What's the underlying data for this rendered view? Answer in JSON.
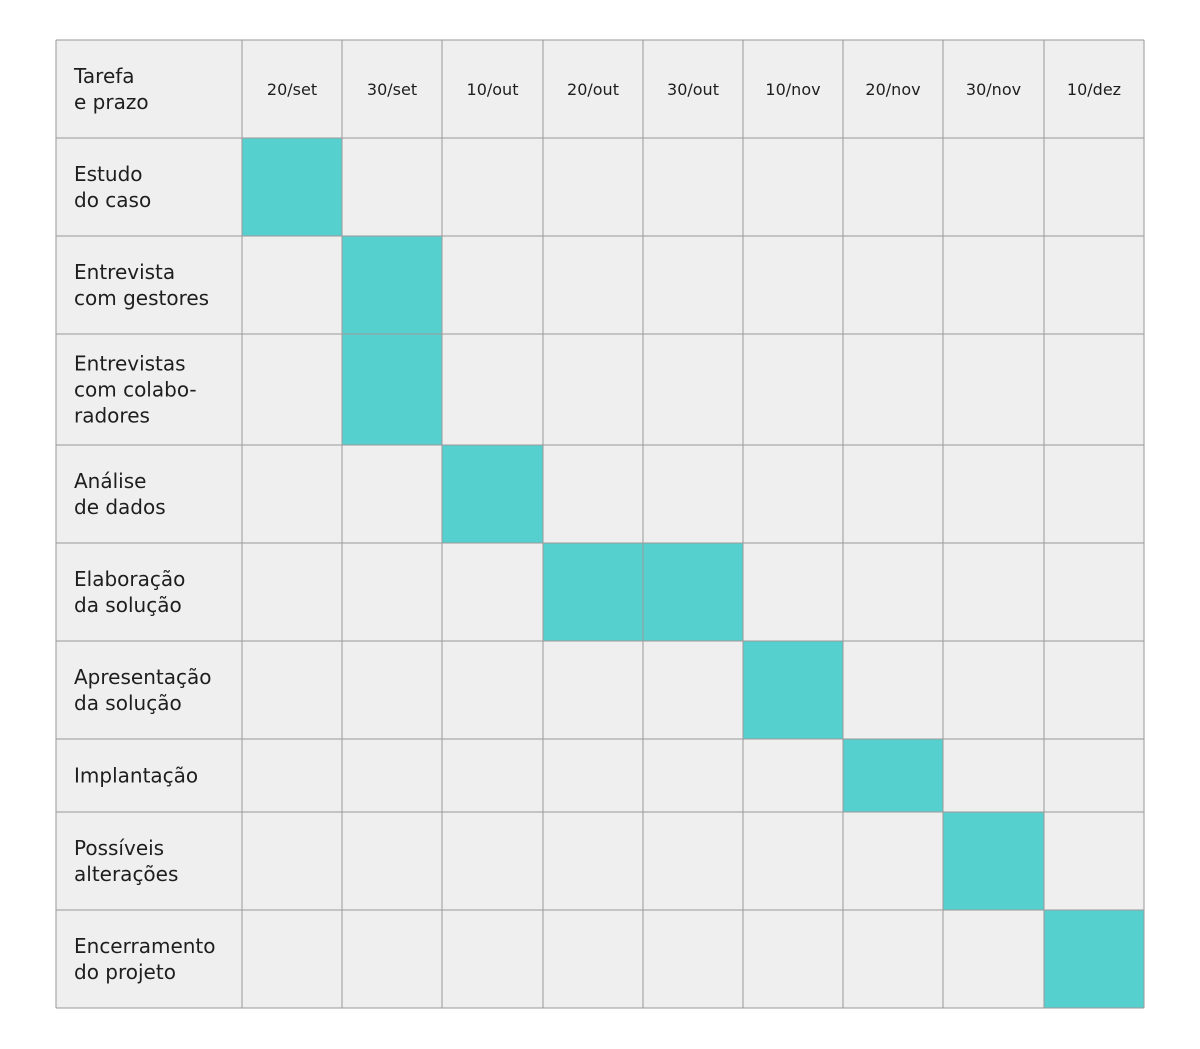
{
  "chart_data": {
    "type": "table",
    "header_label": [
      "Tarefa",
      "e prazo"
    ],
    "dates": [
      "20/set",
      "30/set",
      "10/out",
      "20/out",
      "30/out",
      "10/nov",
      "20/nov",
      "30/nov",
      "10/dez"
    ],
    "tasks": [
      {
        "label": [
          "Estudo",
          "do caso"
        ],
        "active": [
          "20/set"
        ]
      },
      {
        "label": [
          "Entrevista",
          "com gestores"
        ],
        "active": [
          "30/set"
        ]
      },
      {
        "label": [
          "Entrevistas",
          "com colabo-",
          "radores"
        ],
        "active": [
          "30/set"
        ]
      },
      {
        "label": [
          "Análise",
          "de dados"
        ],
        "active": [
          "10/out"
        ]
      },
      {
        "label": [
          "Elaboração",
          "da solução"
        ],
        "active": [
          "20/out",
          "30/out"
        ]
      },
      {
        "label": [
          "Apresentação",
          "da solução"
        ],
        "active": [
          "10/nov"
        ]
      },
      {
        "label": [
          "Implantação"
        ],
        "active": [
          "20/nov"
        ]
      },
      {
        "label": [
          "Possíveis",
          "alterações"
        ],
        "active": [
          "30/nov"
        ]
      },
      {
        "label": [
          "Encerramento",
          "do projeto"
        ],
        "active": [
          "10/dez"
        ]
      }
    ],
    "colors": {
      "cell_background": "#efefef",
      "active_cell": "#55d0cf",
      "grid_line": "#9a9a9a",
      "text": "#1e1e1e"
    }
  }
}
